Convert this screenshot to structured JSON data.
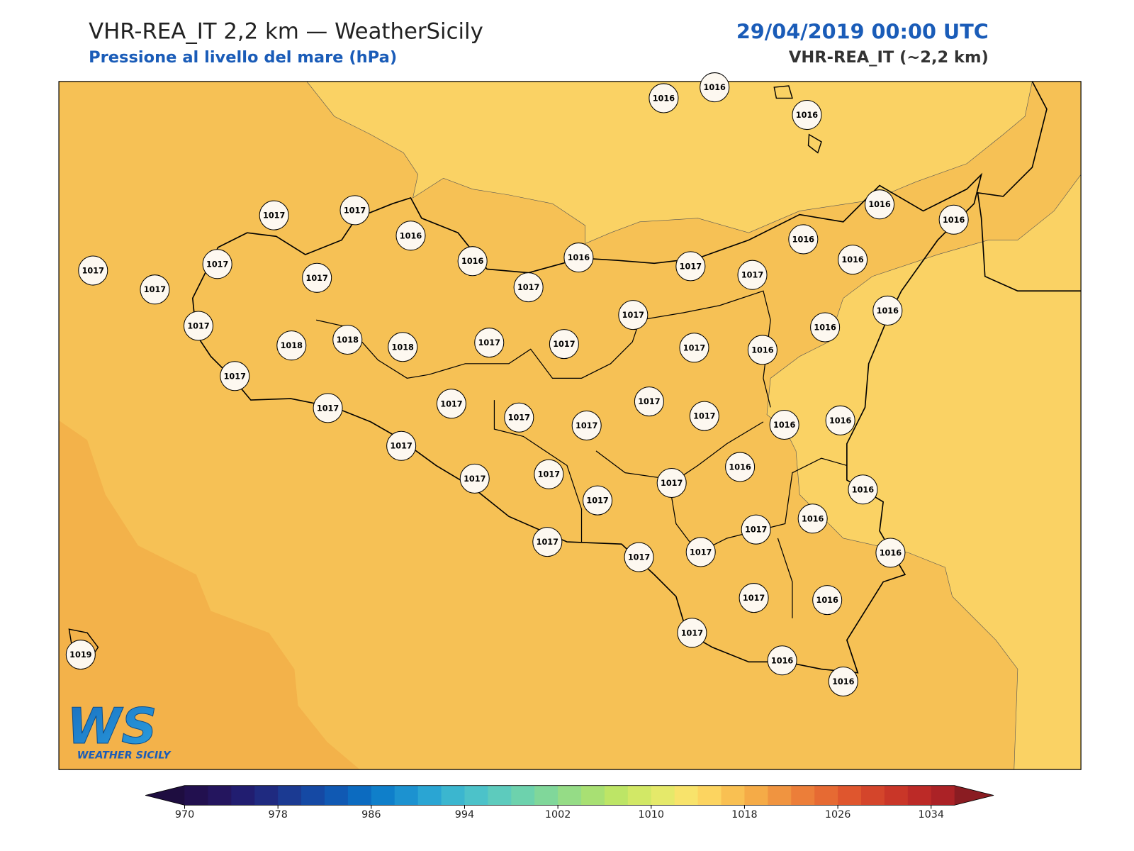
{
  "header": {
    "title": "VHR-REA_IT 2,2 km — WeatherSicily",
    "subtitle": "Pressione al livello del mare (hPa)",
    "date": "29/04/2019 00:00 UTC",
    "model": "VHR-REA_IT (~2,2 km)"
  },
  "stations": [
    1016,
    1016,
    1016,
    1017,
    1017,
    1016,
    1016,
    1016,
    1016,
    1016,
    1017,
    1017,
    1017,
    1017,
    1017,
    1017,
    1017,
    1016,
    1016,
    1017,
    1016,
    1017,
    1018,
    1018,
    1018,
    1017,
    1017,
    1017,
    1016,
    1016,
    1017,
    1017,
    1017,
    1017,
    1017,
    1017,
    1017,
    1016,
    1016,
    1017,
    1017,
    1017,
    1017,
    1017,
    1016,
    1016,
    1017,
    1016,
    1017,
    1017,
    1017,
    1016,
    1017,
    1016,
    1017,
    1016,
    1016,
    1019
  ],
  "logo": {
    "mark": "WS",
    "text": "WEATHER SICILY"
  },
  "colorbar": {
    "range": [
      970,
      1036
    ],
    "ticks": [
      970,
      978,
      986,
      994,
      1002,
      1010,
      1018,
      1026,
      1034
    ],
    "colors": [
      "#22104f",
      "#24155e",
      "#211d70",
      "#1f2a80",
      "#1b3a92",
      "#1549a4",
      "#1059b3",
      "#0c6bc0",
      "#0f7fca",
      "#1c92d0",
      "#2aa5d3",
      "#3bb6cf",
      "#4cc2c9",
      "#5dcbbd",
      "#6dd2ad",
      "#80d79a",
      "#95dc86",
      "#a8e073",
      "#bde566",
      "#d2e866",
      "#e5e96a",
      "#f8e36b",
      "#fcd460",
      "#f9c052",
      "#f5ab47",
      "#f09440",
      "#ec7e39",
      "#e66a33",
      "#df562e",
      "#d4452b",
      "#c93628",
      "#bc2a27",
      "#ab2226"
    ],
    "under": "#1e0d40",
    "over": "#8a1c22"
  }
}
